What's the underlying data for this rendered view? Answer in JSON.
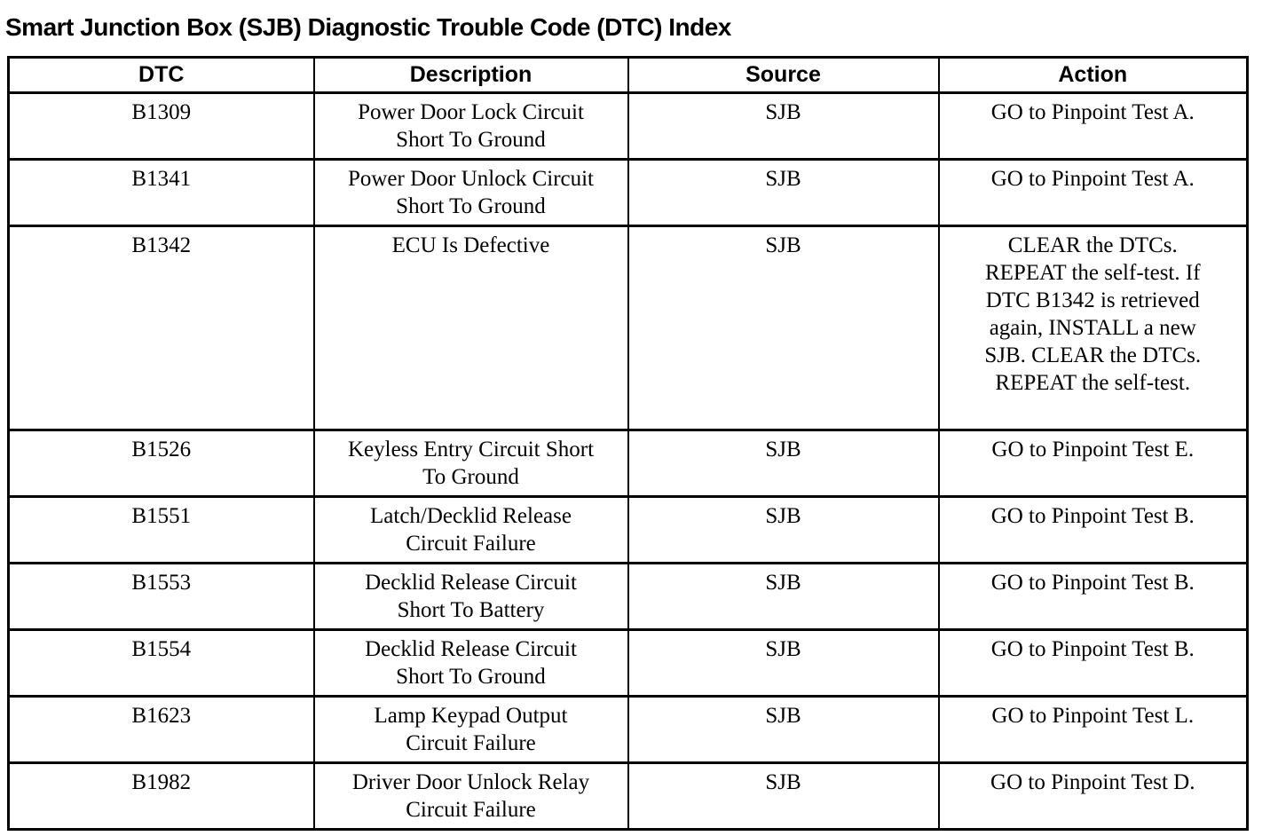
{
  "page_title": "Smart Junction Box (SJB) Diagnostic Trouble Code (DTC) Index",
  "colors": {
    "text": "#000000",
    "border": "#000000",
    "background": "#ffffff"
  },
  "table": {
    "headers": [
      "DTC",
      "Description",
      "Source",
      "Action"
    ],
    "rows": [
      {
        "dtc": "B1309",
        "description": "Power Door Lock Circuit\nShort To Ground",
        "source": "SJB",
        "action": "GO to Pinpoint Test A."
      },
      {
        "dtc": "B1341",
        "description": "Power Door Unlock Circuit\nShort To Ground",
        "source": "SJB",
        "action": "GO to Pinpoint Test A."
      },
      {
        "dtc": "B1342",
        "description": "ECU Is Defective",
        "source": "SJB",
        "action": "CLEAR the DTCs.\nREPEAT the self-test. If\nDTC B1342 is retrieved\nagain, INSTALL a new\nSJB. CLEAR the DTCs.\nREPEAT the self-test."
      },
      {
        "dtc": "B1526",
        "description": "Keyless Entry Circuit Short\nTo Ground",
        "source": "SJB",
        "action": "GO to Pinpoint Test E."
      },
      {
        "dtc": "B1551",
        "description": "Latch/Decklid Release\nCircuit Failure",
        "source": "SJB",
        "action": "GO to Pinpoint Test B."
      },
      {
        "dtc": "B1553",
        "description": "Decklid Release Circuit\nShort To Battery",
        "source": "SJB",
        "action": "GO to Pinpoint Test B."
      },
      {
        "dtc": "B1554",
        "description": "Decklid Release Circuit\nShort To Ground",
        "source": "SJB",
        "action": "GO to Pinpoint Test B."
      },
      {
        "dtc": "B1623",
        "description": "Lamp Keypad Output\nCircuit Failure",
        "source": "SJB",
        "action": "GO to Pinpoint Test L."
      },
      {
        "dtc": "B1982",
        "description": "Driver Door Unlock Relay\nCircuit Failure",
        "source": "SJB",
        "action": "GO to Pinpoint Test D."
      }
    ]
  }
}
